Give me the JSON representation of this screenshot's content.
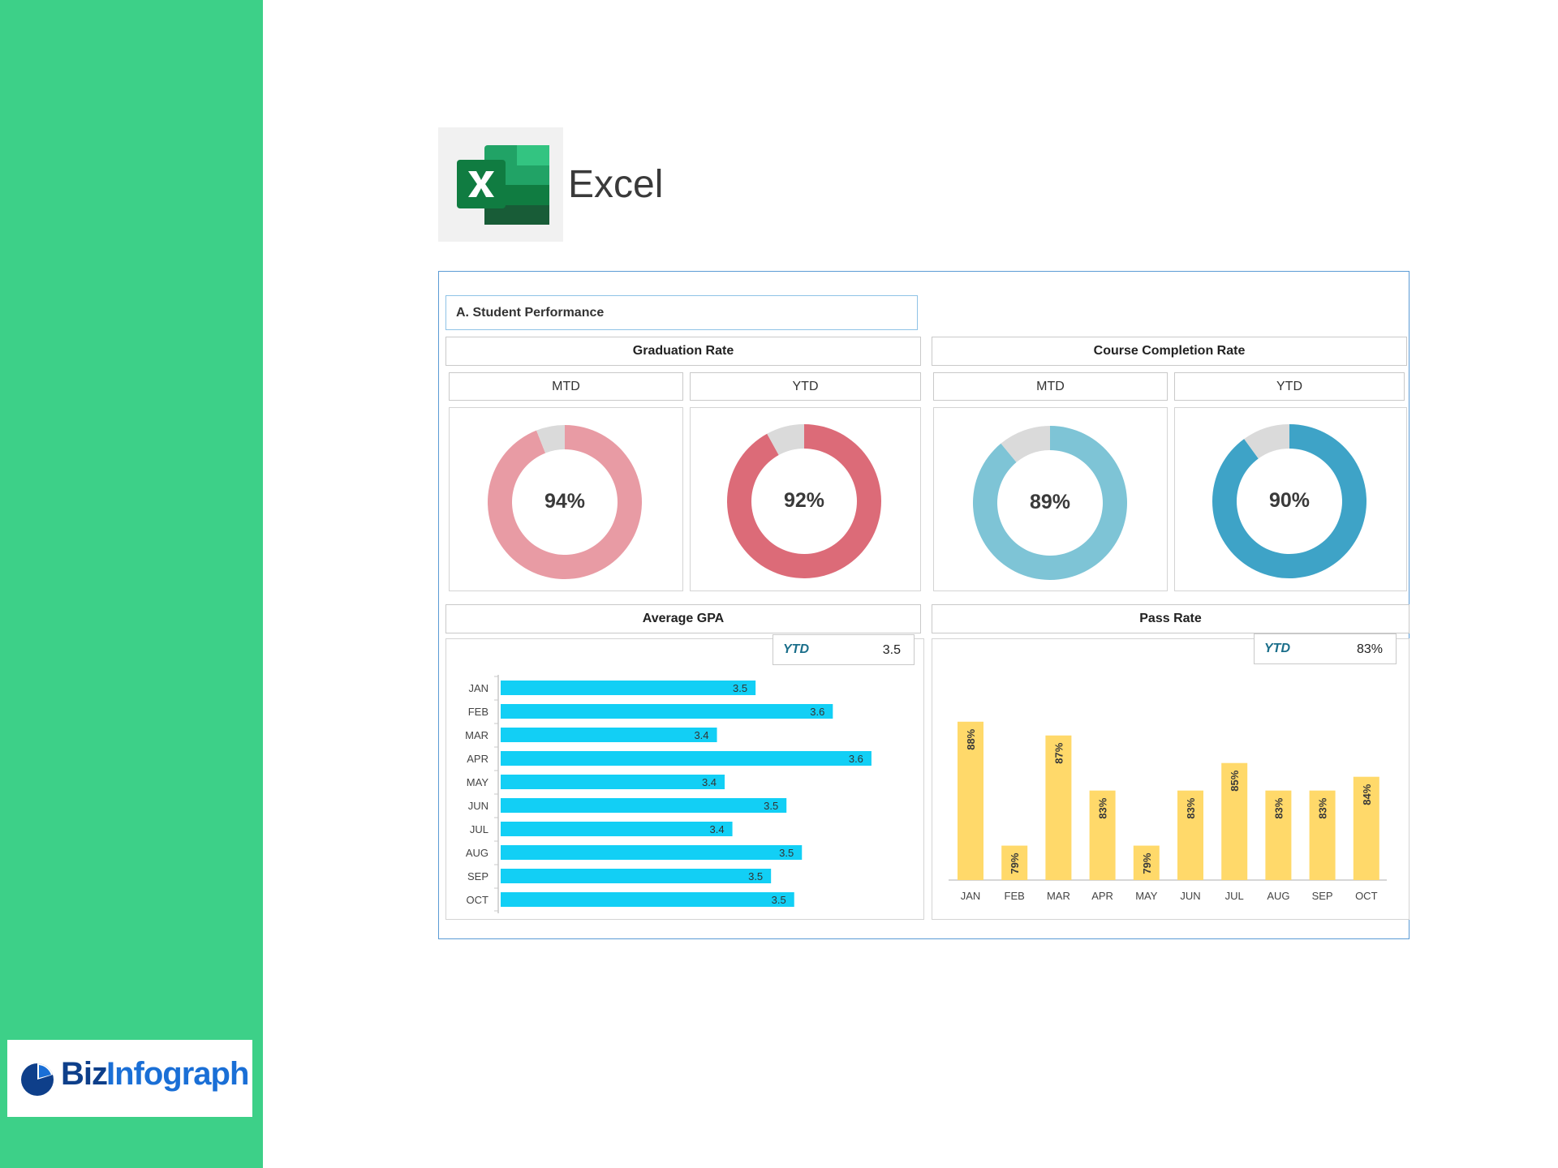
{
  "app": {
    "title": "Excel"
  },
  "brand": {
    "part1": "Biz",
    "part2": "Infograph"
  },
  "colors": {
    "sidebar": "#3dd088",
    "grad_mtd": "#e89ba4",
    "grad_ytd": "#dc6b78",
    "course_mtd": "#7ec4d6",
    "course_ytd": "#3ea3c7",
    "remainder": "#dadada",
    "gpa_bar": "#12cff5",
    "pass_bar": "#ffd96a"
  },
  "dashboard": {
    "section_title": "A. Student Performance",
    "graduation": {
      "title": "Graduation Rate",
      "mtd_label": "MTD",
      "ytd_label": "YTD",
      "mtd_value": "94%",
      "ytd_value": "92%"
    },
    "course": {
      "title": "Course Completion Rate",
      "mtd_label": "MTD",
      "ytd_label": "YTD",
      "mtd_value": "89%",
      "ytd_value": "90%"
    },
    "gpa": {
      "title": "Average GPA",
      "ytd_label": "YTD",
      "ytd_value": "3.5"
    },
    "pass": {
      "title": "Pass Rate",
      "ytd_label": "YTD",
      "ytd_value": "83%"
    }
  },
  "chart_data": [
    {
      "type": "pie",
      "title": "Graduation Rate MTD",
      "values": [
        94,
        6
      ]
    },
    {
      "type": "pie",
      "title": "Graduation Rate YTD",
      "values": [
        92,
        8
      ]
    },
    {
      "type": "pie",
      "title": "Course Completion Rate MTD",
      "values": [
        89,
        11
      ]
    },
    {
      "type": "pie",
      "title": "Course Completion Rate YTD",
      "values": [
        90,
        10
      ]
    },
    {
      "type": "bar",
      "title": "Average GPA",
      "orientation": "horizontal",
      "categories": [
        "JAN",
        "FEB",
        "MAR",
        "APR",
        "MAY",
        "JUN",
        "JUL",
        "AUG",
        "SEP",
        "OCT"
      ],
      "values": [
        3.5,
        3.6,
        3.4,
        3.6,
        3.4,
        3.5,
        3.4,
        3.5,
        3.5,
        3.5
      ],
      "bar_lengths": [
        3.48,
        3.58,
        3.43,
        3.63,
        3.44,
        3.52,
        3.45,
        3.54,
        3.5,
        3.53
      ],
      "xlim": [
        3.15,
        3.67
      ]
    },
    {
      "type": "bar",
      "title": "Pass Rate",
      "categories": [
        "JAN",
        "FEB",
        "MAR",
        "APR",
        "MAY",
        "JUN",
        "JUL",
        "AUG",
        "SEP",
        "OCT"
      ],
      "values": [
        88,
        79,
        87,
        83,
        79,
        83,
        85,
        83,
        83,
        84
      ],
      "labels": [
        "88%",
        "79%",
        "87%",
        "83%",
        "79%",
        "83%",
        "85%",
        "83%",
        "83%",
        "84%"
      ],
      "ylim": [
        76.5,
        89.4
      ]
    }
  ]
}
